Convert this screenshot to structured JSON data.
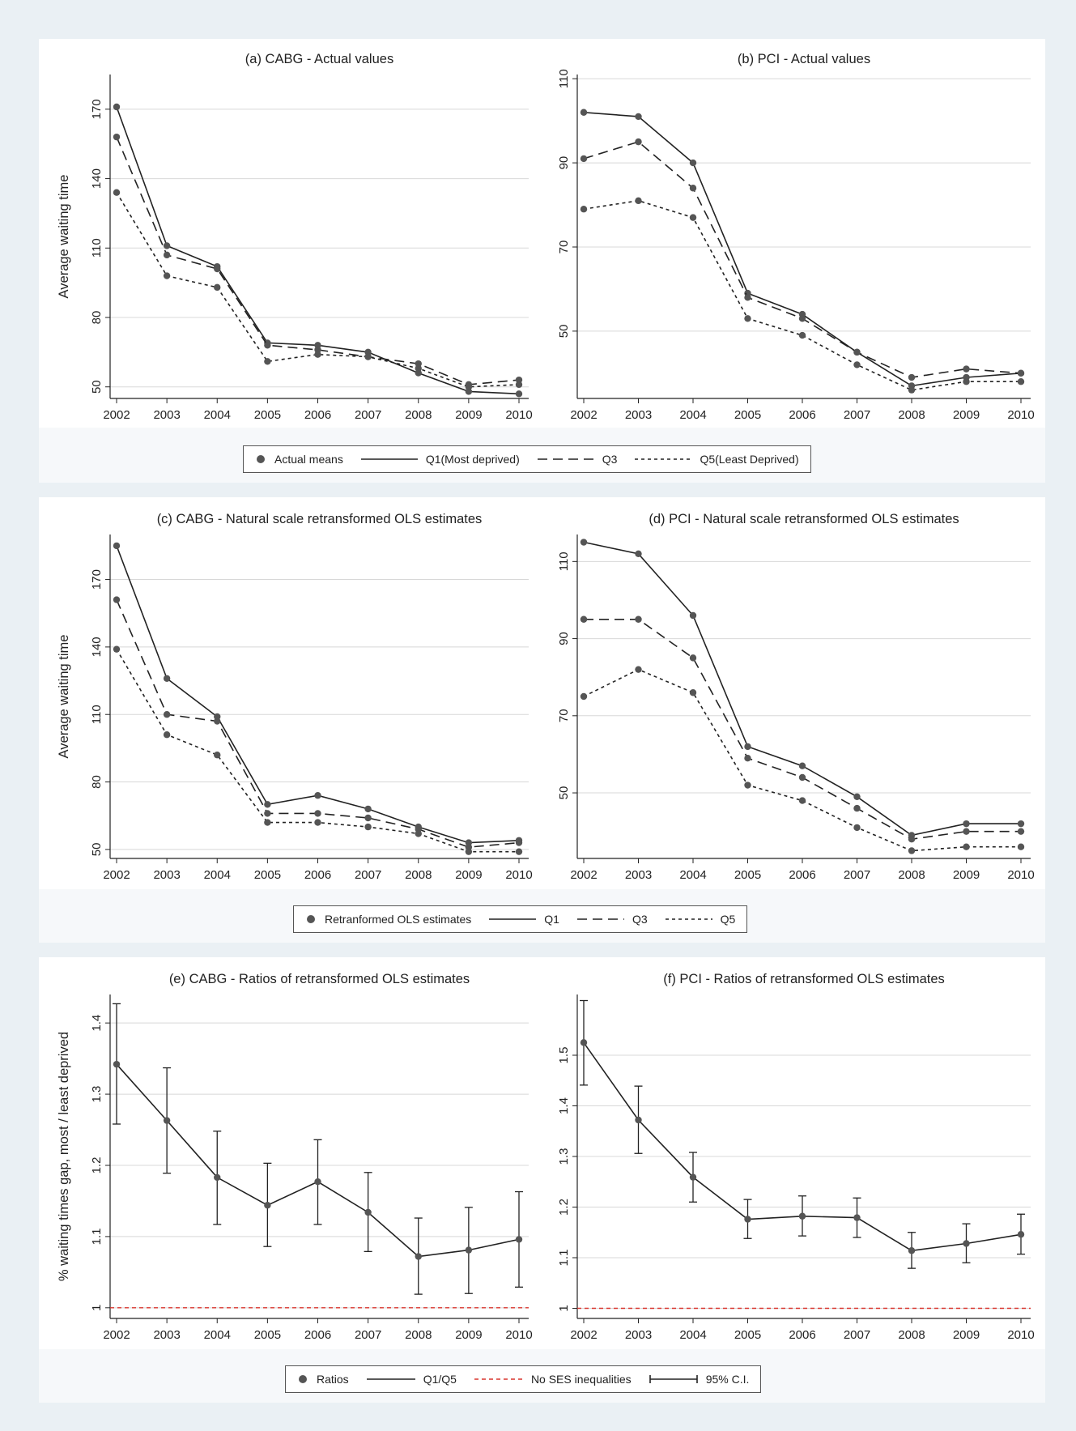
{
  "chart_data": [
    {
      "id": "a",
      "type": "line",
      "title": "(a) CABG - Actual values",
      "ylabel": "Average waiting time",
      "xlabel": "",
      "x": [
        2002,
        2003,
        2004,
        2005,
        2006,
        2007,
        2008,
        2009,
        2010
      ],
      "xticks": [
        "2002",
        "2003",
        "2004",
        "2005",
        "2006",
        "2007",
        "2008",
        "2009",
        "2010"
      ],
      "ylim": [
        45,
        185
      ],
      "yticks": [
        50,
        80,
        110,
        140,
        170
      ],
      "grid": true,
      "series": [
        {
          "name": "Q1(Most deprived)",
          "style": "solid",
          "values": [
            171,
            111,
            102,
            69,
            68,
            65,
            56,
            48,
            47
          ]
        },
        {
          "name": "Q3",
          "style": "dashed",
          "values": [
            158,
            107,
            101,
            68,
            66,
            63,
            60,
            51,
            53
          ]
        },
        {
          "name": "Q5(Least Deprived)",
          "style": "dotted",
          "values": [
            134,
            98,
            93,
            61,
            64,
            63,
            58,
            50,
            51
          ]
        }
      ]
    },
    {
      "id": "b",
      "type": "line",
      "title": "(b) PCI - Actual values",
      "ylabel": "",
      "xlabel": "",
      "x": [
        2002,
        2003,
        2004,
        2005,
        2006,
        2007,
        2008,
        2009,
        2010
      ],
      "xticks": [
        "2002",
        "2003",
        "2004",
        "2005",
        "2006",
        "2007",
        "2008",
        "2009",
        "2010"
      ],
      "ylim": [
        34,
        111
      ],
      "yticks": [
        50,
        70,
        90,
        110
      ],
      "grid": true,
      "series": [
        {
          "name": "Q1(Most deprived)",
          "style": "solid",
          "values": [
            102,
            101,
            90,
            59,
            54,
            45,
            37,
            39,
            40
          ]
        },
        {
          "name": "Q3",
          "style": "dashed",
          "values": [
            91,
            95,
            84,
            58,
            53,
            45,
            39,
            41,
            40
          ]
        },
        {
          "name": "Q5(Least Deprived)",
          "style": "dotted",
          "values": [
            79,
            81,
            77,
            53,
            49,
            42,
            36,
            38,
            38
          ]
        }
      ]
    },
    {
      "id": "c",
      "type": "line",
      "title": "(c) CABG - Natural scale retransformed OLS estimates",
      "ylabel": "Average waiting time",
      "xlabel": "",
      "x": [
        2002,
        2003,
        2004,
        2005,
        2006,
        2007,
        2008,
        2009,
        2010
      ],
      "xticks": [
        "2002",
        "2003",
        "2004",
        "2005",
        "2006",
        "2007",
        "2008",
        "2009",
        "2010"
      ],
      "ylim": [
        46,
        190
      ],
      "yticks": [
        50,
        80,
        110,
        140,
        170
      ],
      "grid": true,
      "series": [
        {
          "name": "Q1",
          "style": "solid",
          "values": [
            185,
            126,
            109,
            70,
            74,
            68,
            60,
            53,
            54
          ]
        },
        {
          "name": "Q3",
          "style": "dashed",
          "values": [
            161,
            110,
            107,
            66,
            66,
            64,
            59,
            51,
            53
          ]
        },
        {
          "name": "Q5",
          "style": "dotted",
          "values": [
            139,
            101,
            92,
            62,
            62,
            60,
            57,
            49,
            49
          ]
        }
      ]
    },
    {
      "id": "d",
      "type": "line",
      "title": "(d) PCI - Natural scale retransformed OLS estimates",
      "ylabel": "",
      "xlabel": "",
      "x": [
        2002,
        2003,
        2004,
        2005,
        2006,
        2007,
        2008,
        2009,
        2010
      ],
      "xticks": [
        "2002",
        "2003",
        "2004",
        "2005",
        "2006",
        "2007",
        "2008",
        "2009",
        "2010"
      ],
      "ylim": [
        33,
        117
      ],
      "yticks": [
        50,
        70,
        90,
        110
      ],
      "grid": true,
      "series": [
        {
          "name": "Q1",
          "style": "solid",
          "values": [
            115,
            112,
            96,
            62,
            57,
            49,
            39,
            42,
            42
          ]
        },
        {
          "name": "Q3",
          "style": "dashed",
          "values": [
            95,
            95,
            85,
            59,
            54,
            46,
            38,
            40,
            40
          ]
        },
        {
          "name": "Q5",
          "style": "dotted",
          "values": [
            75,
            82,
            76,
            52,
            48,
            41,
            35,
            36,
            36
          ]
        }
      ]
    },
    {
      "id": "e",
      "type": "line",
      "title": "(e) CABG - Ratios of retransformed OLS estimates",
      "ylabel": "% waiting times gap, most / least deprived",
      "xlabel": "",
      "x": [
        2002,
        2003,
        2004,
        2005,
        2006,
        2007,
        2008,
        2009,
        2010
      ],
      "xticks": [
        "2002",
        "2003",
        "2004",
        "2005",
        "2006",
        "2007",
        "2008",
        "2009",
        "2010"
      ],
      "ylim": [
        0.985,
        1.44
      ],
      "yticks": [
        1,
        1.1,
        1.2,
        1.3,
        1.4
      ],
      "grid": true,
      "reference_line": {
        "name": "No SES inequalities",
        "value": 1,
        "color": "#d9352e"
      },
      "series": [
        {
          "name": "Q1/Q5",
          "style": "solid",
          "values": [
            1.342,
            1.263,
            1.183,
            1.144,
            1.177,
            1.134,
            1.072,
            1.081,
            1.096
          ],
          "ci_low": [
            1.258,
            1.189,
            1.117,
            1.086,
            1.117,
            1.079,
            1.019,
            1.02,
            1.029
          ],
          "ci_high": [
            1.427,
            1.337,
            1.248,
            1.203,
            1.236,
            1.19,
            1.126,
            1.141,
            1.163
          ]
        }
      ]
    },
    {
      "id": "f",
      "type": "line",
      "title": "(f) PCI - Ratios of retransformed OLS estimates",
      "ylabel": "",
      "xlabel": "",
      "x": [
        2002,
        2003,
        2004,
        2005,
        2006,
        2007,
        2008,
        2009,
        2010
      ],
      "xticks": [
        "2002",
        "2003",
        "2004",
        "2005",
        "2006",
        "2007",
        "2008",
        "2009",
        "2010"
      ],
      "ylim": [
        0.98,
        1.62
      ],
      "yticks": [
        1,
        1.1,
        1.2,
        1.3,
        1.4,
        1.5
      ],
      "grid": true,
      "reference_line": {
        "name": "No SES inequalities",
        "value": 1,
        "color": "#d9352e"
      },
      "series": [
        {
          "name": "Q1/Q5",
          "style": "solid",
          "values": [
            1.525,
            1.372,
            1.259,
            1.176,
            1.182,
            1.179,
            1.114,
            1.128,
            1.146
          ],
          "ci_low": [
            1.441,
            1.306,
            1.21,
            1.138,
            1.143,
            1.14,
            1.079,
            1.09,
            1.107
          ],
          "ci_high": [
            1.608,
            1.439,
            1.308,
            1.215,
            1.222,
            1.218,
            1.15,
            1.167,
            1.186
          ]
        }
      ]
    }
  ],
  "legends": [
    {
      "items": [
        {
          "kind": "marker",
          "label": "Actual means"
        },
        {
          "kind": "solid",
          "label": "Q1(Most deprived)"
        },
        {
          "kind": "dashed",
          "label": "Q3"
        },
        {
          "kind": "dotted",
          "label": "Q5(Least Deprived)"
        }
      ]
    },
    {
      "items": [
        {
          "kind": "marker",
          "label": "Retranformed OLS estimates"
        },
        {
          "kind": "solid",
          "label": "Q1"
        },
        {
          "kind": "dashed",
          "label": "Q3"
        },
        {
          "kind": "dotted",
          "label": "Q5"
        }
      ]
    },
    {
      "items": [
        {
          "kind": "marker",
          "label": "Ratios"
        },
        {
          "kind": "solid",
          "label": "Q1/Q5"
        },
        {
          "kind": "reddash",
          "label": "No SES inequalities"
        },
        {
          "kind": "ci",
          "label": "95% C.I."
        }
      ]
    }
  ],
  "colors": {
    "line": "#222222",
    "marker": "#555555",
    "grid": "#d8d8d8",
    "reference": "#d9352e",
    "panel_bg": "#ffffff",
    "page_bg": "#eaf0f4"
  }
}
